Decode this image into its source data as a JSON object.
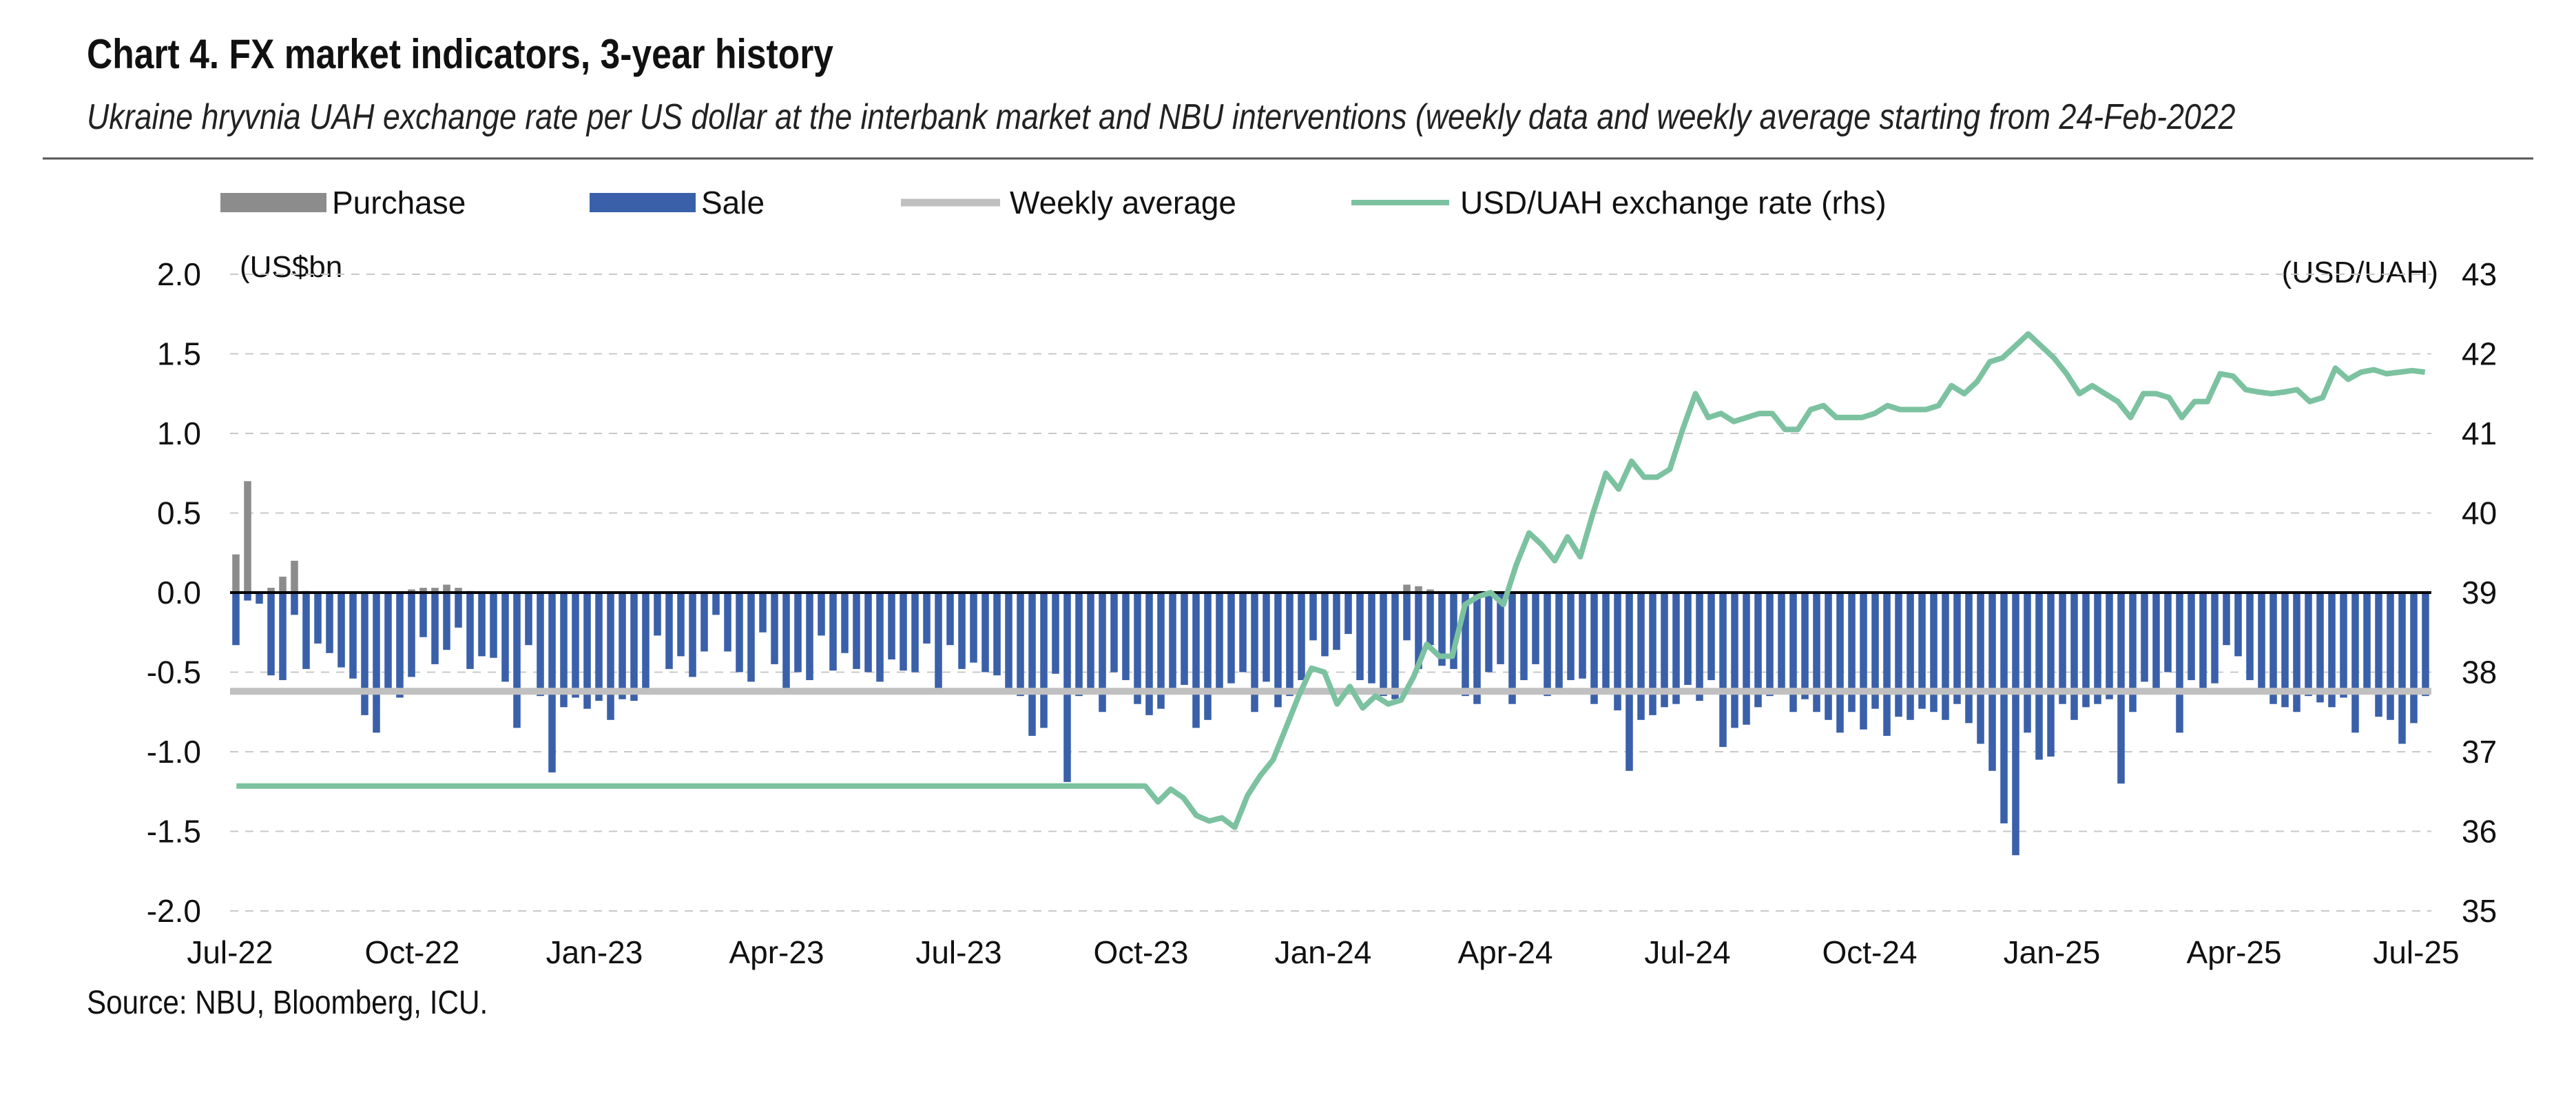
{
  "header": {
    "title": "Chart 4. FX market indicators, 3-year history",
    "subtitle": "Ukraine hryvnia UAH exchange rate per US dollar at the interbank market and NBU interventions (weekly data and weekly average starting from 24-Feb-2022"
  },
  "footer": {
    "source": "Source: NBU, Bloomberg, ICU."
  },
  "colors": {
    "purchase": "#8c8c8c",
    "sale": "#3a60aa",
    "weekly_average": "#c0c0c0",
    "exchange_rate": "#7cc2a0",
    "grid": "#c8c8c8",
    "zero_line": "#000000"
  },
  "chart_data": {
    "type": "bar",
    "title": "Chart 4. FX market indicators, 3-year history",
    "legend": {
      "placement": "top",
      "items": [
        "Purchase",
        "Sale",
        "Weekly average",
        "USD/UAH exchange rate (rhs)"
      ]
    },
    "y_left": {
      "label": "(US$bn",
      "ylim": [
        -2.0,
        2.0
      ],
      "ticks": [
        "2.0",
        "1.5",
        "1.0",
        "0.5",
        "0.0",
        "-0.5",
        "-1.0",
        "-1.5",
        "-2.0"
      ]
    },
    "y_right": {
      "label": "(USD/UAH)",
      "ylim": [
        35,
        43
      ],
      "ticks": [
        "43",
        "42",
        "41",
        "40",
        "39",
        "38",
        "37",
        "36",
        "35"
      ]
    },
    "x_tick_labels": [
      "Jul-22",
      "Oct-22",
      "Jan-23",
      "Apr-23",
      "Jul-23",
      "Oct-23",
      "Jan-24",
      "Apr-24",
      "Jul-24",
      "Oct-24",
      "Jan-25",
      "Apr-25",
      "Jul-25"
    ],
    "grid": true,
    "weeks_start": "Jul-22",
    "weeks_end": "Jul-25",
    "series": [
      {
        "name": "Purchase",
        "type": "bar",
        "values": [
          0.24,
          0.7,
          0.0,
          0.03,
          0.1,
          0.2,
          0.01,
          0.0,
          0.0,
          0.0,
          0.0,
          0.0,
          0.0,
          0.0,
          0.0,
          0.02,
          0.03,
          0.03,
          0.05,
          0.03,
          0.01,
          0.0,
          0.0,
          0.0,
          0.0,
          0.0,
          0.0,
          0.0,
          0.0,
          0.0,
          0.0,
          0.0,
          0.0,
          0.0,
          0.0,
          0.0,
          0.0,
          0.0,
          0.0,
          0.0,
          0.0,
          0.0,
          0.0,
          0.0,
          0.0,
          0.0,
          0.0,
          0.0,
          0.0,
          0.0,
          0.0,
          0.0,
          0.0,
          0.0,
          0.0,
          0.0,
          0.0,
          0.0,
          0.0,
          0.0,
          0.0,
          0.0,
          0.0,
          0.0,
          0.0,
          0.0,
          0.0,
          0.0,
          0.0,
          0.0,
          0.0,
          0.0,
          0.0,
          0.0,
          0.0,
          0.0,
          0.0,
          0.0,
          0.0,
          0.0,
          0.0,
          0.0,
          0.0,
          0.0,
          0.0,
          0.0,
          0.0,
          0.0,
          0.0,
          0.0,
          0.0,
          0.0,
          0.0,
          0.0,
          0.0,
          0.0,
          0.0,
          0.0,
          0.0,
          0.0,
          0.05,
          0.04,
          0.02,
          0.0,
          0.0,
          0.0,
          0.0,
          0.0,
          0.0,
          0.0,
          0.0,
          0.0,
          0.0,
          0.0,
          0.0,
          0.0,
          0.0,
          0.0,
          0.0,
          0.0,
          0.0,
          0.0,
          0.0,
          0.0,
          0.0,
          0.0,
          0.0,
          0.0,
          0.0,
          0.0,
          0.0,
          0.0,
          0.0,
          0.0,
          0.0,
          0.0,
          0.0,
          0.0,
          0.0,
          0.0,
          0.0,
          0.0,
          0.0,
          0.0,
          0.0,
          0.0,
          0.0,
          0.0,
          0.0,
          0.0,
          0.0,
          0.0,
          0.0,
          0.0,
          0.0,
          0.0,
          0.0,
          0.0,
          0.0,
          0.0,
          0.0,
          0.0,
          0.0,
          0.0,
          0.0
        ]
      },
      {
        "name": "Sale",
        "type": "bar",
        "values": [
          -0.33,
          -0.05,
          -0.07,
          -0.52,
          -0.55,
          -0.14,
          -0.48,
          -0.32,
          -0.38,
          -0.47,
          -0.54,
          -0.77,
          -0.88,
          -0.6,
          -0.66,
          -0.53,
          -0.28,
          -0.45,
          -0.36,
          -0.22,
          -0.48,
          -0.4,
          -0.41,
          -0.56,
          -0.85,
          -0.33,
          -0.65,
          -1.13,
          -0.72,
          -0.66,
          -0.73,
          -0.68,
          -0.8,
          -0.67,
          -0.68,
          -0.62,
          -0.27,
          -0.48,
          -0.4,
          -0.53,
          -0.37,
          -0.14,
          -0.37,
          -0.5,
          -0.56,
          -0.25,
          -0.45,
          -0.6,
          -0.5,
          -0.55,
          -0.27,
          -0.49,
          -0.38,
          -0.48,
          -0.5,
          -0.56,
          -0.42,
          -0.49,
          -0.5,
          -0.32,
          -0.6,
          -0.33,
          -0.48,
          -0.44,
          -0.5,
          -0.52,
          -0.61,
          -0.65,
          -0.9,
          -0.85,
          -0.51,
          -1.19,
          -0.65,
          -0.61,
          -0.75,
          -0.5,
          -0.55,
          -0.7,
          -0.77,
          -0.73,
          -0.6,
          -0.58,
          -0.85,
          -0.8,
          -0.6,
          -0.57,
          -0.5,
          -0.75,
          -0.56,
          -0.72,
          -0.65,
          -0.55,
          -0.3,
          -0.4,
          -0.36,
          -0.26,
          -0.55,
          -0.57,
          -0.65,
          -0.67,
          -0.3,
          -0.48,
          -0.33,
          -0.46,
          -0.48,
          -0.65,
          -0.7,
          -0.5,
          -0.45,
          -0.7,
          -0.55,
          -0.45,
          -0.65,
          -0.6,
          -0.55,
          -0.54,
          -0.7,
          -0.6,
          -0.74,
          -1.12,
          -0.8,
          -0.77,
          -0.72,
          -0.7,
          -0.58,
          -0.68,
          -0.55,
          -0.97,
          -0.85,
          -0.83,
          -0.72,
          -0.65,
          -0.6,
          -0.75,
          -0.67,
          -0.75,
          -0.8,
          -0.88,
          -0.75,
          -0.86,
          -0.73,
          -0.9,
          -0.78,
          -0.8,
          -0.73,
          -0.75,
          -0.8,
          -0.7,
          -0.82,
          -0.95,
          -1.12,
          -1.45,
          -1.65,
          -0.88,
          -1.05,
          -1.03,
          -0.7,
          -0.8,
          -0.72,
          -0.7,
          -0.67,
          -1.2,
          -0.75,
          -0.56,
          -0.62,
          -0.5,
          -0.88,
          -0.55,
          -0.6,
          -0.57,
          -0.33,
          -0.4,
          -0.55,
          -0.62,
          -0.7,
          -0.72,
          -0.75,
          -0.65,
          -0.69,
          -0.72,
          -0.66,
          -0.88,
          -0.6,
          -0.78,
          -0.8,
          -0.95,
          -0.82,
          -0.65
        ]
      },
      {
        "name": "Weekly average",
        "type": "line",
        "value": -0.62
      },
      {
        "name": "USD/UAH exchange rate (rhs)",
        "type": "line",
        "axis": "right",
        "values": [
          36.57,
          36.57,
          36.57,
          36.57,
          36.57,
          36.57,
          36.57,
          36.57,
          36.57,
          36.57,
          36.57,
          36.57,
          36.57,
          36.57,
          36.57,
          36.57,
          36.57,
          36.57,
          36.57,
          36.57,
          36.57,
          36.57,
          36.57,
          36.57,
          36.57,
          36.57,
          36.57,
          36.57,
          36.57,
          36.57,
          36.57,
          36.57,
          36.57,
          36.57,
          36.57,
          36.57,
          36.57,
          36.57,
          36.57,
          36.57,
          36.57,
          36.57,
          36.57,
          36.57,
          36.57,
          36.57,
          36.57,
          36.57,
          36.57,
          36.57,
          36.57,
          36.57,
          36.57,
          36.57,
          36.57,
          36.57,
          36.57,
          36.57,
          36.57,
          36.57,
          36.57,
          36.57,
          36.57,
          36.57,
          36.57,
          36.57,
          36.57,
          36.57,
          36.57,
          36.57,
          36.57,
          36.57,
          36.37,
          36.53,
          36.42,
          36.2,
          36.13,
          36.17,
          36.05,
          36.45,
          36.7,
          36.9,
          37.3,
          37.7,
          38.05,
          38.0,
          37.6,
          37.82,
          37.55,
          37.7,
          37.6,
          37.65,
          37.95,
          38.35,
          38.2,
          38.2,
          38.85,
          38.95,
          39.0,
          38.85,
          39.35,
          39.75,
          39.6,
          39.4,
          39.7,
          39.45,
          40.0,
          40.5,
          40.3,
          40.65,
          40.45,
          40.45,
          40.55,
          41.05,
          41.5,
          41.2,
          41.25,
          41.15,
          41.2,
          41.25,
          41.25,
          41.05,
          41.05,
          41.3,
          41.35,
          41.2,
          41.2,
          41.2,
          41.25,
          41.35,
          41.3,
          41.3,
          41.3,
          41.35,
          41.6,
          41.5,
          41.65,
          41.9,
          41.95,
          42.1,
          42.25,
          42.1,
          41.95,
          41.75,
          41.5,
          41.6,
          41.5,
          41.4,
          41.2,
          41.5,
          41.5,
          41.45,
          41.2,
          41.4,
          41.4,
          41.75,
          41.72,
          41.55,
          41.52,
          41.5,
          41.52,
          41.55,
          41.4,
          41.45,
          41.82,
          41.68,
          41.77,
          41.8,
          41.75,
          41.77,
          41.79,
          41.77
        ]
      }
    ]
  }
}
